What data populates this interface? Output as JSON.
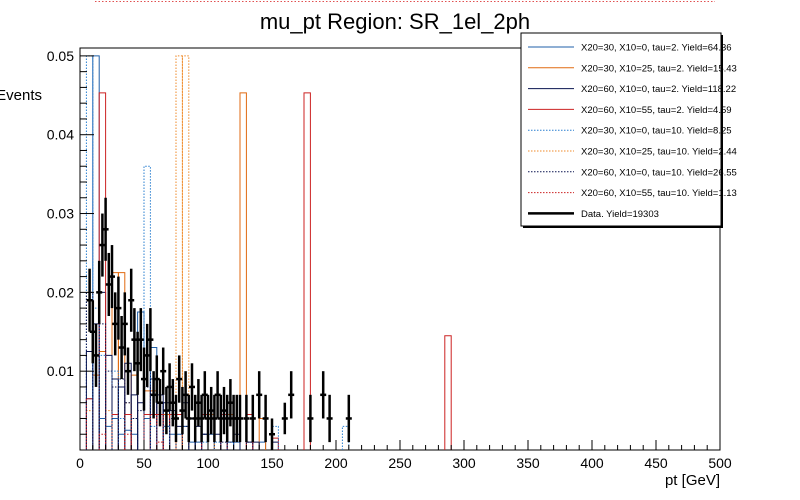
{
  "chart_data": {
    "type": "histogram",
    "title": "mu_pt Region: SR_1el_2ph",
    "xlabel": "pt [GeV]",
    "ylabel": "Events",
    "xlim": [
      0,
      500
    ],
    "ylim": [
      0,
      0.051
    ],
    "bin_width": 5,
    "x_ticks": [
      0,
      50,
      100,
      150,
      200,
      250,
      300,
      350,
      400,
      450,
      500
    ],
    "x_tick_labels": [
      "0",
      "50",
      "100",
      "150",
      "200",
      "250",
      "300",
      "350",
      "400",
      "450",
      "500"
    ],
    "y_ticks": [
      0.01,
      0.02,
      0.03,
      0.04,
      0.05
    ],
    "y_tick_labels": [
      "0.01",
      "0.02",
      "0.03",
      "0.04",
      "0.05"
    ],
    "series": [
      {
        "name": "X20=30, X10=0, tau=2. Yield=64.36",
        "color": "#1f5fa8",
        "style": "solid",
        "bins": [
          [
            5,
            0.0065
          ],
          [
            10,
            0.05
          ],
          [
            15,
            0.004
          ],
          [
            20,
            0.003
          ],
          [
            25,
            0.004
          ],
          [
            30,
            0.002
          ],
          [
            35,
            0.0025
          ],
          [
            40,
            0.002
          ],
          [
            45,
            0.0175
          ],
          [
            50,
            0.004
          ],
          [
            55,
            0.013
          ],
          [
            60,
            0.006
          ],
          [
            65,
            0.003
          ],
          [
            70,
            0.002
          ],
          [
            75,
            0.002
          ],
          [
            80,
            0.003
          ],
          [
            85,
            0.001
          ],
          [
            90,
            0.001
          ],
          [
            95,
            0.002
          ],
          [
            100,
            0.002
          ],
          [
            120,
            0.001
          ],
          [
            140,
            0.001
          ]
        ]
      },
      {
        "name": "X20=30, X10=25, tau=2. Yield=15.43",
        "color": "#e06a10",
        "style": "solid",
        "bins": [
          [
            10,
            0.0095
          ],
          [
            15,
            0.0125
          ],
          [
            25,
            0.0225
          ],
          [
            30,
            0.0225
          ],
          [
            40,
            0.0095
          ],
          [
            50,
            0.0075
          ],
          [
            55,
            0.0075
          ],
          [
            65,
            0.0045
          ],
          [
            75,
            0.0045
          ],
          [
            95,
            0.0045
          ],
          [
            100,
            0.0045
          ],
          [
            115,
            0.0045
          ],
          [
            125,
            0.0453
          ],
          [
            140,
            0.004
          ]
        ]
      },
      {
        "name": "X20=60, X10=0, tau=2. Yield=118.22",
        "color": "#0a1450",
        "style": "solid",
        "bins": [
          [
            5,
            0.0125
          ],
          [
            10,
            0.016
          ],
          [
            15,
            0.02
          ],
          [
            20,
            0.012
          ],
          [
            25,
            0.009
          ],
          [
            30,
            0.008
          ],
          [
            35,
            0.011
          ],
          [
            40,
            0.007
          ],
          [
            45,
            0.006
          ],
          [
            50,
            0.012
          ],
          [
            55,
            0.009
          ],
          [
            60,
            0.007
          ],
          [
            65,
            0.006
          ],
          [
            70,
            0.005
          ],
          [
            75,
            0.003
          ],
          [
            80,
            0.006
          ],
          [
            85,
            0.004
          ],
          [
            90,
            0.003
          ],
          [
            95,
            0.002
          ],
          [
            100,
            0.005
          ],
          [
            105,
            0.002
          ],
          [
            110,
            0.004
          ],
          [
            115,
            0.001
          ],
          [
            120,
            0.002
          ],
          [
            130,
            0.001
          ],
          [
            135,
            0.001
          ],
          [
            150,
            0.001
          ]
        ]
      },
      {
        "name": "X20=60, X10=55, tau=2. Yield=4.59",
        "color": "#cc2222",
        "style": "solid",
        "bins": [
          [
            5,
            0.0065
          ],
          [
            15,
            0.0453
          ],
          [
            25,
            0.0045
          ],
          [
            35,
            0.0045
          ],
          [
            50,
            0.0045
          ],
          [
            55,
            0.0045
          ],
          [
            60,
            0.0045
          ],
          [
            70,
            0.0045
          ],
          [
            75,
            0.0045
          ],
          [
            95,
            0.0045
          ],
          [
            110,
            0.0045
          ],
          [
            130,
            0.0045
          ],
          [
            150,
            0.0015
          ],
          [
            175,
            0.0453
          ],
          [
            285,
            0.0145
          ]
        ]
      },
      {
        "name": "X20=30, X10=0, tau=10. Yield=8.25",
        "color": "#2a7fd0",
        "style": "dotted",
        "bins": [
          [
            5,
            0.05
          ],
          [
            10,
            0.018
          ],
          [
            15,
            0.012
          ],
          [
            25,
            0.01
          ],
          [
            30,
            0.004
          ],
          [
            40,
            0.004
          ],
          [
            50,
            0.036
          ],
          [
            55,
            0.003
          ],
          [
            65,
            0.003
          ],
          [
            95,
            0.001
          ],
          [
            105,
            0.001
          ],
          [
            115,
            0.001
          ],
          [
            150,
            0.003
          ],
          [
            205,
            0.003
          ]
        ]
      },
      {
        "name": "X20=30, X10=25, tau=10. Yield=2.44",
        "color": "#ef8a2a",
        "style": "dotted",
        "bins": [
          [
            5,
            0.005
          ],
          [
            20,
            0.005
          ],
          [
            35,
            0.006
          ],
          [
            75,
            0.05
          ],
          [
            80,
            0.05
          ],
          [
            100,
            0.004
          ]
        ]
      },
      {
        "name": "X20=60, X10=0, tau=10. Yield=26.55",
        "color": "#0a1450",
        "style": "dotted",
        "bins": [
          [
            5,
            0.02
          ],
          [
            10,
            0.012
          ],
          [
            15,
            0.016
          ],
          [
            20,
            0.01
          ],
          [
            25,
            0.008
          ],
          [
            30,
            0.009
          ],
          [
            35,
            0.006
          ],
          [
            40,
            0.004
          ],
          [
            45,
            0.005
          ],
          [
            50,
            0.008
          ],
          [
            60,
            0.006
          ],
          [
            70,
            0.004
          ],
          [
            80,
            0.003
          ],
          [
            95,
            0.002
          ],
          [
            110,
            0.001
          ],
          [
            130,
            0.001
          ]
        ]
      },
      {
        "name": "X20=60, X10=55, tau=10. Yield=1.13",
        "color": "#cc2222",
        "style": "dotted",
        "bins": [
          [
            15,
            0.002
          ],
          [
            35,
            0.002
          ],
          [
            60,
            0.001
          ]
        ]
      }
    ],
    "data_series": {
      "name": "Data. Yield=19303",
      "color": "#000000",
      "points": [
        {
          "x": 7.5,
          "y": 0.019,
          "err": 0.004
        },
        {
          "x": 10,
          "y": 0.015,
          "err": 0.004
        },
        {
          "x": 12.5,
          "y": 0.012,
          "err": 0.004
        },
        {
          "x": 15,
          "y": 0.02,
          "err": 0.004
        },
        {
          "x": 17.5,
          "y": 0.026,
          "err": 0.004
        },
        {
          "x": 20,
          "y": 0.028,
          "err": 0.004
        },
        {
          "x": 22.5,
          "y": 0.021,
          "err": 0.004
        },
        {
          "x": 25,
          "y": 0.022,
          "err": 0.004
        },
        {
          "x": 27.5,
          "y": 0.016,
          "err": 0.004
        },
        {
          "x": 30,
          "y": 0.018,
          "err": 0.004
        },
        {
          "x": 32.5,
          "y": 0.013,
          "err": 0.004
        },
        {
          "x": 35,
          "y": 0.016,
          "err": 0.004
        },
        {
          "x": 37.5,
          "y": 0.01,
          "err": 0.003
        },
        {
          "x": 40,
          "y": 0.019,
          "err": 0.004
        },
        {
          "x": 42.5,
          "y": 0.014,
          "err": 0.004
        },
        {
          "x": 45,
          "y": 0.011,
          "err": 0.004
        },
        {
          "x": 47.5,
          "y": 0.014,
          "err": 0.004
        },
        {
          "x": 50,
          "y": 0.009,
          "err": 0.004
        },
        {
          "x": 52.5,
          "y": 0.012,
          "err": 0.004
        },
        {
          "x": 55,
          "y": 0.014,
          "err": 0.004
        },
        {
          "x": 57.5,
          "y": 0.007,
          "err": 0.003
        },
        {
          "x": 60,
          "y": 0.009,
          "err": 0.003
        },
        {
          "x": 62.5,
          "y": 0.006,
          "err": 0.003
        },
        {
          "x": 65,
          "y": 0.01,
          "err": 0.003
        },
        {
          "x": 67.5,
          "y": 0.005,
          "err": 0.003
        },
        {
          "x": 70,
          "y": 0.008,
          "err": 0.003
        },
        {
          "x": 72.5,
          "y": 0.006,
          "err": 0.003
        },
        {
          "x": 75,
          "y": 0.004,
          "err": 0.003
        },
        {
          "x": 77.5,
          "y": 0.009,
          "err": 0.003
        },
        {
          "x": 80,
          "y": 0.005,
          "err": 0.003
        },
        {
          "x": 82.5,
          "y": 0.007,
          "err": 0.003
        },
        {
          "x": 85,
          "y": 0.004,
          "err": 0.003
        },
        {
          "x": 87.5,
          "y": 0.008,
          "err": 0.003
        },
        {
          "x": 90,
          "y": 0.004,
          "err": 0.003
        },
        {
          "x": 92.5,
          "y": 0.006,
          "err": 0.003
        },
        {
          "x": 95,
          "y": 0.004,
          "err": 0.003
        },
        {
          "x": 97.5,
          "y": 0.007,
          "err": 0.003
        },
        {
          "x": 100,
          "y": 0.004,
          "err": 0.003
        },
        {
          "x": 102.5,
          "y": 0.005,
          "err": 0.003
        },
        {
          "x": 105,
          "y": 0.004,
          "err": 0.003
        },
        {
          "x": 107.5,
          "y": 0.007,
          "err": 0.003
        },
        {
          "x": 110,
          "y": 0.004,
          "err": 0.003
        },
        {
          "x": 112.5,
          "y": 0.005,
          "err": 0.003
        },
        {
          "x": 115,
          "y": 0.004,
          "err": 0.003
        },
        {
          "x": 117.5,
          "y": 0.006,
          "err": 0.003
        },
        {
          "x": 120,
          "y": 0.004,
          "err": 0.003
        },
        {
          "x": 122.5,
          "y": 0.004,
          "err": 0.003
        },
        {
          "x": 125,
          "y": 0.004,
          "err": 0.003
        },
        {
          "x": 130,
          "y": 0.004,
          "err": 0.003
        },
        {
          "x": 135,
          "y": 0.004,
          "err": 0.003
        },
        {
          "x": 140,
          "y": 0.007,
          "err": 0.003
        },
        {
          "x": 145,
          "y": 0.004,
          "err": 0.003
        },
        {
          "x": 150,
          "y": 0.002,
          "err": 0.002
        },
        {
          "x": 160,
          "y": 0.004,
          "err": 0.002
        },
        {
          "x": 165,
          "y": 0.007,
          "err": 0.003
        },
        {
          "x": 180,
          "y": 0.004,
          "err": 0.003
        },
        {
          "x": 190,
          "y": 0.007,
          "err": 0.003
        },
        {
          "x": 195,
          "y": 0.004,
          "err": 0.003
        },
        {
          "x": 210,
          "y": 0.004,
          "err": 0.003
        }
      ]
    },
    "legend_position": "top-right"
  }
}
